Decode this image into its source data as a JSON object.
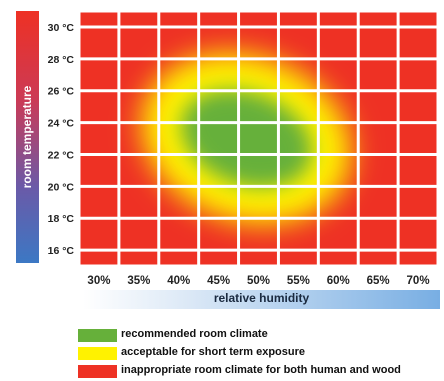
{
  "chart_data": {
    "type": "heatmap",
    "xlabel": "relative humidity",
    "ylabel": "room temperature",
    "x_ticks": [
      "30%",
      "35%",
      "40%",
      "45%",
      "50%",
      "55%",
      "60%",
      "65%",
      "70%"
    ],
    "y_ticks": [
      "30 °C",
      "28 °C",
      "26 °C",
      "24 °C",
      "22 °C",
      "20 °C",
      "18 °C",
      "16 °C"
    ],
    "xlim": [
      27.5,
      72.5
    ],
    "ylim": [
      15,
      31
    ],
    "grid": true,
    "legend_position": "bottom",
    "zones": [
      {
        "label": "recommended room climate",
        "color": "#66b03a",
        "center": {
          "humidity": 48.5,
          "temperature": 23
        },
        "semi_axis_humidity": 8.5,
        "semi_axis_temperature": 2.9,
        "tilt_deg": 20
      },
      {
        "label": "acceptable for short term exposure",
        "color": "#fff200",
        "center": {
          "humidity": 48.5,
          "temperature": 23
        },
        "semi_axis_humidity": 13.5,
        "semi_axis_temperature": 5.2,
        "tilt_deg": 20
      },
      {
        "label": "inappropriate room climate for both human and wood",
        "color": "#ee3124"
      }
    ]
  },
  "legend": {
    "items": [
      {
        "label": "recommended room climate",
        "color": "#66b03a"
      },
      {
        "label": "acceptable for short term exposure",
        "color": "#fff200"
      },
      {
        "label": "inappropriate room climate for both human and wood",
        "color": "#ee3124"
      }
    ]
  }
}
